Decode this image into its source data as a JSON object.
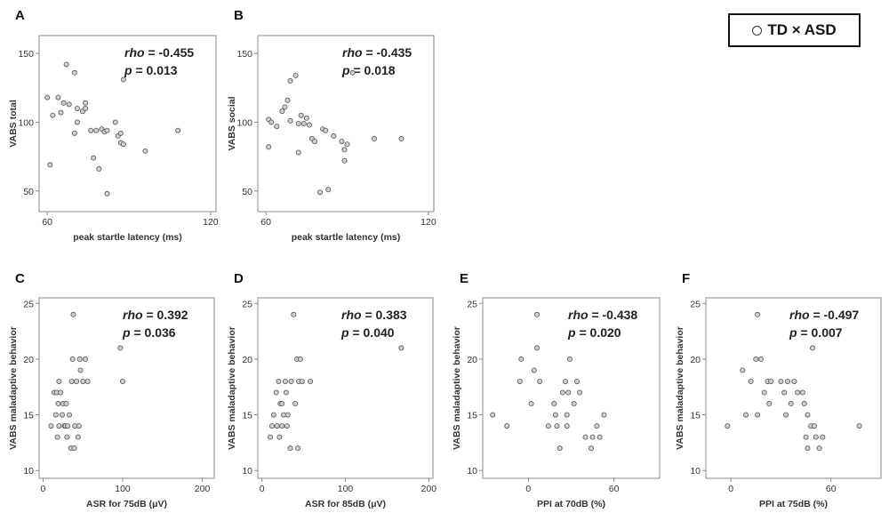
{
  "legend": {
    "label": "TD × ASD",
    "symbol": "circle-open"
  },
  "colors": {
    "marker_fill": "#cfcfcf",
    "marker_stroke": "#555555",
    "axis": "#888888",
    "text": "#222222"
  },
  "chart_data": [
    {
      "panel": "A",
      "type": "scatter",
      "xlabel": "peak startle latency (ms)",
      "ylabel": "VABS total",
      "xlim": [
        57,
        122
      ],
      "ylim": [
        35,
        163
      ],
      "xticks": [
        60,
        120
      ],
      "yticks": [
        50,
        100,
        150
      ],
      "stat": {
        "rho": "-0.455",
        "p": "0.013"
      },
      "points": [
        [
          60,
          118
        ],
        [
          61,
          69
        ],
        [
          62,
          105
        ],
        [
          64,
          118
        ],
        [
          65,
          107
        ],
        [
          66,
          114
        ],
        [
          67,
          142
        ],
        [
          68,
          113
        ],
        [
          70,
          136
        ],
        [
          70,
          92
        ],
        [
          71,
          110
        ],
        [
          71,
          100
        ],
        [
          73,
          108
        ],
        [
          74,
          114
        ],
        [
          74,
          110
        ],
        [
          76,
          94
        ],
        [
          77,
          74
        ],
        [
          78,
          94
        ],
        [
          79,
          66
        ],
        [
          80,
          95
        ],
        [
          81,
          93
        ],
        [
          82,
          48
        ],
        [
          82,
          94
        ],
        [
          85,
          100
        ],
        [
          86,
          90
        ],
        [
          87,
          85
        ],
        [
          87,
          92
        ],
        [
          88,
          131
        ],
        [
          88,
          84
        ],
        [
          96,
          79
        ],
        [
          108,
          94
        ]
      ]
    },
    {
      "panel": "B",
      "type": "scatter",
      "xlabel": "peak startle latency (ms)",
      "ylabel": "VABS social",
      "xlim": [
        57,
        122
      ],
      "ylim": [
        35,
        163
      ],
      "xticks": [
        60,
        120
      ],
      "yticks": [
        50,
        100,
        150
      ],
      "stat": {
        "rho": "-0.435",
        "p": "0.018"
      },
      "points": [
        [
          61,
          82
        ],
        [
          61,
          102
        ],
        [
          62,
          100
        ],
        [
          64,
          97
        ],
        [
          66,
          108
        ],
        [
          67,
          111
        ],
        [
          68,
          116
        ],
        [
          69,
          130
        ],
        [
          69,
          101
        ],
        [
          71,
          134
        ],
        [
          72,
          99
        ],
        [
          72,
          78
        ],
        [
          73,
          105
        ],
        [
          74,
          99
        ],
        [
          75,
          103
        ],
        [
          76,
          98
        ],
        [
          77,
          88
        ],
        [
          78,
          86
        ],
        [
          80,
          49
        ],
        [
          81,
          95
        ],
        [
          82,
          94
        ],
        [
          83,
          51
        ],
        [
          85,
          90
        ],
        [
          88,
          86
        ],
        [
          89,
          80
        ],
        [
          89,
          72
        ],
        [
          90,
          84
        ],
        [
          92,
          136
        ],
        [
          100,
          88
        ],
        [
          110,
          88
        ]
      ]
    },
    {
      "panel": "C",
      "type": "scatter",
      "xlabel": "ASR for 75dB (μV)",
      "ylabel": "VABS maladaptive behavior",
      "xlim": [
        -5,
        215
      ],
      "ylim": [
        9.3,
        25.5
      ],
      "xticks": [
        0,
        100,
        200
      ],
      "yticks": [
        10,
        15,
        20,
        25
      ],
      "stat": {
        "rho": "0.392",
        "p": "0.036"
      },
      "points": [
        [
          10,
          14
        ],
        [
          14,
          17
        ],
        [
          16,
          15
        ],
        [
          17,
          17
        ],
        [
          18,
          13
        ],
        [
          19,
          16
        ],
        [
          20,
          18
        ],
        [
          20,
          14
        ],
        [
          22,
          17
        ],
        [
          24,
          15
        ],
        [
          25,
          16
        ],
        [
          27,
          14
        ],
        [
          28,
          14
        ],
        [
          29,
          16
        ],
        [
          30,
          13
        ],
        [
          31,
          14
        ],
        [
          33,
          15
        ],
        [
          35,
          12
        ],
        [
          36,
          18
        ],
        [
          37,
          20
        ],
        [
          38,
          24
        ],
        [
          39,
          12
        ],
        [
          40,
          14
        ],
        [
          42,
          18
        ],
        [
          44,
          13
        ],
        [
          45,
          14
        ],
        [
          46,
          20
        ],
        [
          47,
          19
        ],
        [
          50,
          18
        ],
        [
          53,
          20
        ],
        [
          56,
          18
        ],
        [
          97,
          21
        ],
        [
          100,
          18
        ]
      ]
    },
    {
      "panel": "D",
      "type": "scatter",
      "xlabel": "ASR for 85dB (μV)",
      "ylabel": "VABS maladaptive behavior",
      "xlim": [
        -5,
        205
      ],
      "ylim": [
        9.3,
        25.5
      ],
      "xticks": [
        0,
        100,
        200
      ],
      "yticks": [
        10,
        15,
        20,
        25
      ],
      "stat": {
        "rho": "0.383",
        "p": "0.040"
      },
      "points": [
        [
          10,
          13
        ],
        [
          12,
          14
        ],
        [
          14,
          15
        ],
        [
          17,
          17
        ],
        [
          18,
          14
        ],
        [
          20,
          18
        ],
        [
          21,
          13
        ],
        [
          22,
          16
        ],
        [
          24,
          16
        ],
        [
          24,
          14
        ],
        [
          26,
          15
        ],
        [
          28,
          18
        ],
        [
          29,
          17
        ],
        [
          30,
          14
        ],
        [
          31,
          15
        ],
        [
          34,
          12
        ],
        [
          35,
          18
        ],
        [
          38,
          24
        ],
        [
          40,
          16
        ],
        [
          42,
          20
        ],
        [
          43,
          12
        ],
        [
          44,
          18
        ],
        [
          46,
          20
        ],
        [
          48,
          18
        ],
        [
          58,
          18
        ],
        [
          167,
          21
        ]
      ]
    },
    {
      "panel": "E",
      "type": "scatter",
      "xlabel": "PPI at 70dB (%)",
      "ylabel": "VABS maladaptive behavior",
      "xlim": [
        -32,
        92
      ],
      "ylim": [
        9.3,
        25.5
      ],
      "xticks": [
        0,
        60
      ],
      "yticks": [
        10,
        15,
        20,
        25
      ],
      "stat": {
        "rho": "-0.438",
        "p": "0.020"
      },
      "points": [
        [
          -25,
          15
        ],
        [
          -15,
          14
        ],
        [
          -6,
          18
        ],
        [
          -5,
          20
        ],
        [
          2,
          16
        ],
        [
          4,
          19
        ],
        [
          6,
          24
        ],
        [
          6,
          21
        ],
        [
          8,
          18
        ],
        [
          14,
          14
        ],
        [
          18,
          16
        ],
        [
          19,
          15
        ],
        [
          20,
          14
        ],
        [
          22,
          12
        ],
        [
          24,
          17
        ],
        [
          26,
          18
        ],
        [
          27,
          15
        ],
        [
          27,
          14
        ],
        [
          28,
          17
        ],
        [
          29,
          20
        ],
        [
          32,
          16
        ],
        [
          34,
          18
        ],
        [
          36,
          17
        ],
        [
          40,
          13
        ],
        [
          44,
          12
        ],
        [
          45,
          13
        ],
        [
          48,
          14
        ],
        [
          50,
          13
        ],
        [
          53,
          15
        ]
      ]
    },
    {
      "panel": "F",
      "type": "scatter",
      "xlabel": "PPI at 75dB (%)",
      "ylabel": "VABS maladaptive behavior",
      "xlim": [
        -15,
        90
      ],
      "ylim": [
        9.3,
        25.5
      ],
      "xticks": [
        0,
        60
      ],
      "yticks": [
        10,
        15,
        20,
        25
      ],
      "stat": {
        "rho": "-0.497",
        "p": "0.007"
      },
      "points": [
        [
          -2,
          14
        ],
        [
          7,
          19
        ],
        [
          9,
          15
        ],
        [
          12,
          18
        ],
        [
          15,
          20
        ],
        [
          16,
          24
        ],
        [
          16,
          15
        ],
        [
          18,
          20
        ],
        [
          20,
          17
        ],
        [
          22,
          18
        ],
        [
          23,
          16
        ],
        [
          24,
          18
        ],
        [
          30,
          18
        ],
        [
          32,
          17
        ],
        [
          33,
          15
        ],
        [
          34,
          18
        ],
        [
          36,
          16
        ],
        [
          38,
          18
        ],
        [
          40,
          17
        ],
        [
          43,
          17
        ],
        [
          44,
          16
        ],
        [
          45,
          13
        ],
        [
          46,
          12
        ],
        [
          46,
          15
        ],
        [
          48,
          14
        ],
        [
          49,
          21
        ],
        [
          50,
          14
        ],
        [
          51,
          13
        ],
        [
          53,
          12
        ],
        [
          55,
          13
        ],
        [
          77,
          14
        ]
      ]
    }
  ]
}
